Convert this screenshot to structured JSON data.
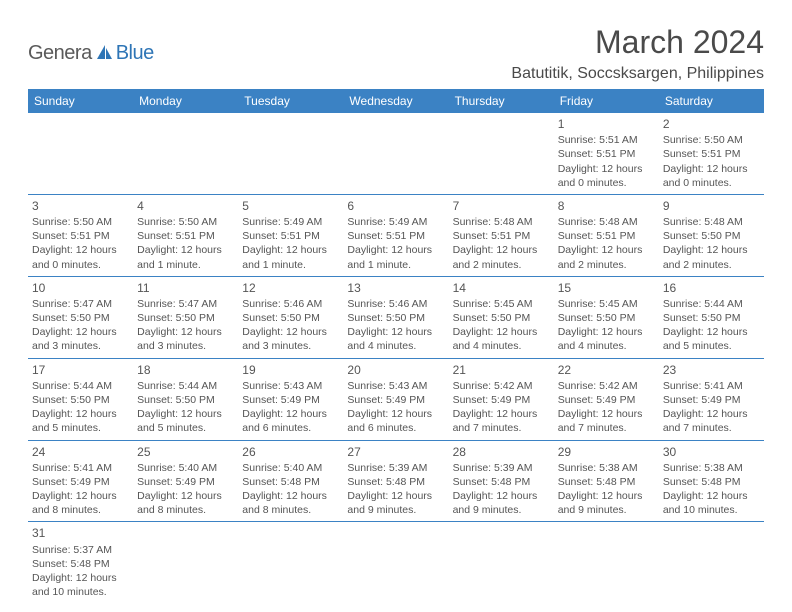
{
  "logo": {
    "part1": "Genera",
    "part2": "Blue"
  },
  "title": "March 2024",
  "location": "Batutitik, Soccsksargen, Philippines",
  "colors": {
    "header_bg": "#3b82c4",
    "header_text": "#ffffff",
    "body_text": "#555555",
    "border": "#3b82c4",
    "logo_gray": "#5a5a5a",
    "logo_blue": "#2e75b6",
    "page_bg": "#ffffff"
  },
  "typography": {
    "title_fontsize": 32,
    "location_fontsize": 16,
    "header_fontsize": 12,
    "cell_fontsize": 10.5,
    "daynum_fontsize": 12
  },
  "layout": {
    "columns": 7,
    "rows": 6,
    "first_day_column": 5,
    "days_in_month": 31
  },
  "weekdays": [
    "Sunday",
    "Monday",
    "Tuesday",
    "Wednesday",
    "Thursday",
    "Friday",
    "Saturday"
  ],
  "days": [
    {
      "n": 1,
      "sr": "5:51 AM",
      "ss": "5:51 PM",
      "dl": "12 hours and 0 minutes."
    },
    {
      "n": 2,
      "sr": "5:50 AM",
      "ss": "5:51 PM",
      "dl": "12 hours and 0 minutes."
    },
    {
      "n": 3,
      "sr": "5:50 AM",
      "ss": "5:51 PM",
      "dl": "12 hours and 0 minutes."
    },
    {
      "n": 4,
      "sr": "5:50 AM",
      "ss": "5:51 PM",
      "dl": "12 hours and 1 minute."
    },
    {
      "n": 5,
      "sr": "5:49 AM",
      "ss": "5:51 PM",
      "dl": "12 hours and 1 minute."
    },
    {
      "n": 6,
      "sr": "5:49 AM",
      "ss": "5:51 PM",
      "dl": "12 hours and 1 minute."
    },
    {
      "n": 7,
      "sr": "5:48 AM",
      "ss": "5:51 PM",
      "dl": "12 hours and 2 minutes."
    },
    {
      "n": 8,
      "sr": "5:48 AM",
      "ss": "5:51 PM",
      "dl": "12 hours and 2 minutes."
    },
    {
      "n": 9,
      "sr": "5:48 AM",
      "ss": "5:50 PM",
      "dl": "12 hours and 2 minutes."
    },
    {
      "n": 10,
      "sr": "5:47 AM",
      "ss": "5:50 PM",
      "dl": "12 hours and 3 minutes."
    },
    {
      "n": 11,
      "sr": "5:47 AM",
      "ss": "5:50 PM",
      "dl": "12 hours and 3 minutes."
    },
    {
      "n": 12,
      "sr": "5:46 AM",
      "ss": "5:50 PM",
      "dl": "12 hours and 3 minutes."
    },
    {
      "n": 13,
      "sr": "5:46 AM",
      "ss": "5:50 PM",
      "dl": "12 hours and 4 minutes."
    },
    {
      "n": 14,
      "sr": "5:45 AM",
      "ss": "5:50 PM",
      "dl": "12 hours and 4 minutes."
    },
    {
      "n": 15,
      "sr": "5:45 AM",
      "ss": "5:50 PM",
      "dl": "12 hours and 4 minutes."
    },
    {
      "n": 16,
      "sr": "5:44 AM",
      "ss": "5:50 PM",
      "dl": "12 hours and 5 minutes."
    },
    {
      "n": 17,
      "sr": "5:44 AM",
      "ss": "5:50 PM",
      "dl": "12 hours and 5 minutes."
    },
    {
      "n": 18,
      "sr": "5:44 AM",
      "ss": "5:50 PM",
      "dl": "12 hours and 5 minutes."
    },
    {
      "n": 19,
      "sr": "5:43 AM",
      "ss": "5:49 PM",
      "dl": "12 hours and 6 minutes."
    },
    {
      "n": 20,
      "sr": "5:43 AM",
      "ss": "5:49 PM",
      "dl": "12 hours and 6 minutes."
    },
    {
      "n": 21,
      "sr": "5:42 AM",
      "ss": "5:49 PM",
      "dl": "12 hours and 7 minutes."
    },
    {
      "n": 22,
      "sr": "5:42 AM",
      "ss": "5:49 PM",
      "dl": "12 hours and 7 minutes."
    },
    {
      "n": 23,
      "sr": "5:41 AM",
      "ss": "5:49 PM",
      "dl": "12 hours and 7 minutes."
    },
    {
      "n": 24,
      "sr": "5:41 AM",
      "ss": "5:49 PM",
      "dl": "12 hours and 8 minutes."
    },
    {
      "n": 25,
      "sr": "5:40 AM",
      "ss": "5:49 PM",
      "dl": "12 hours and 8 minutes."
    },
    {
      "n": 26,
      "sr": "5:40 AM",
      "ss": "5:48 PM",
      "dl": "12 hours and 8 minutes."
    },
    {
      "n": 27,
      "sr": "5:39 AM",
      "ss": "5:48 PM",
      "dl": "12 hours and 9 minutes."
    },
    {
      "n": 28,
      "sr": "5:39 AM",
      "ss": "5:48 PM",
      "dl": "12 hours and 9 minutes."
    },
    {
      "n": 29,
      "sr": "5:38 AM",
      "ss": "5:48 PM",
      "dl": "12 hours and 9 minutes."
    },
    {
      "n": 30,
      "sr": "5:38 AM",
      "ss": "5:48 PM",
      "dl": "12 hours and 10 minutes."
    },
    {
      "n": 31,
      "sr": "5:37 AM",
      "ss": "5:48 PM",
      "dl": "12 hours and 10 minutes."
    }
  ],
  "labels": {
    "sunrise": "Sunrise:",
    "sunset": "Sunset:",
    "daylight": "Daylight:"
  }
}
